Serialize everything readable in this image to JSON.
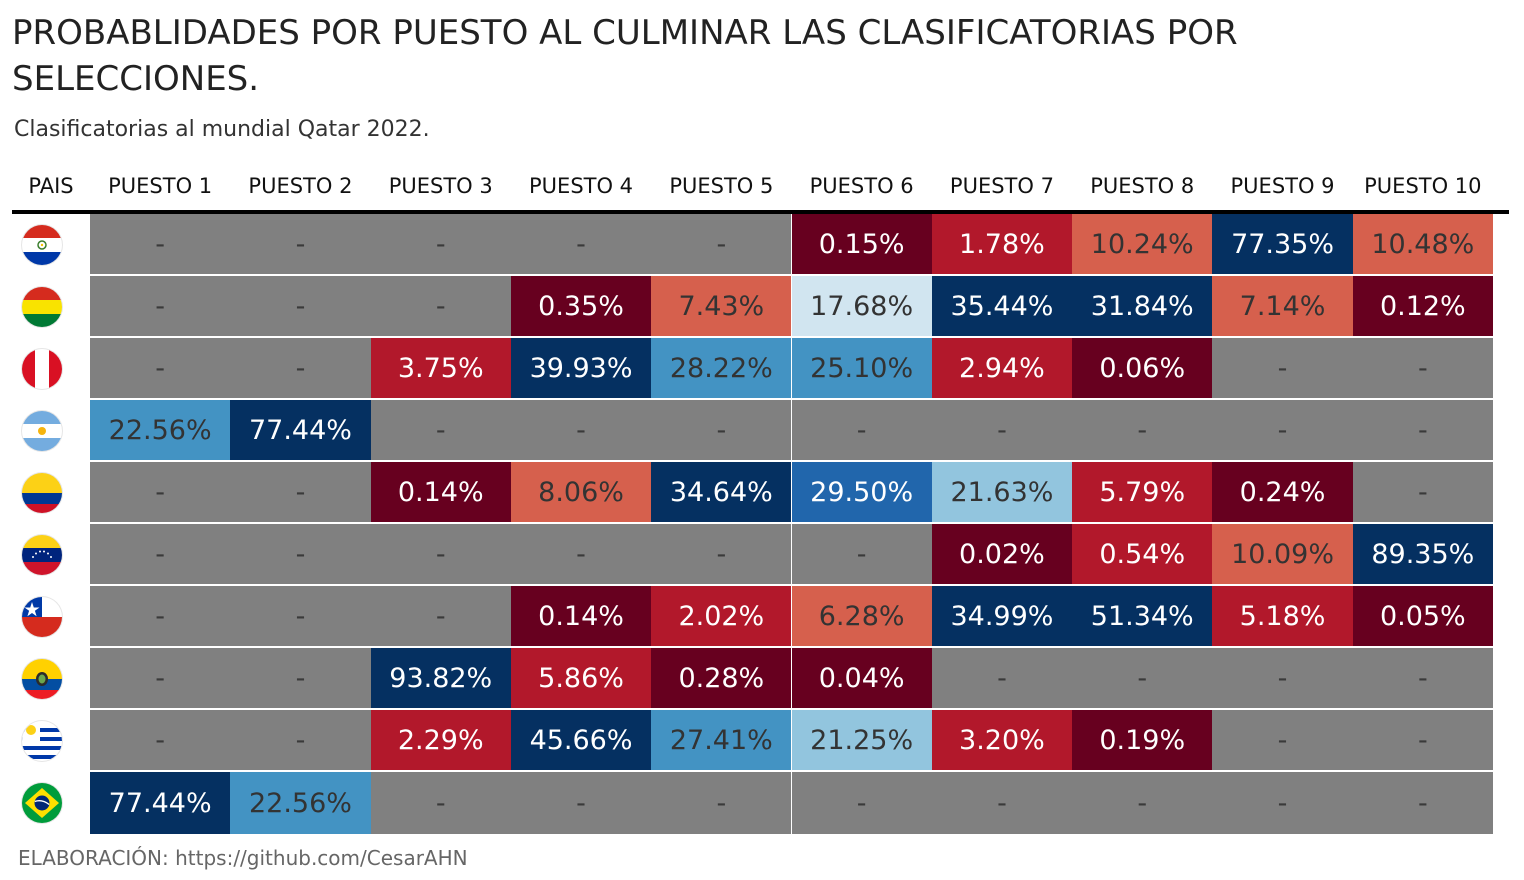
{
  "chart_data": {
    "type": "table",
    "title": "PROBABLIDADES POR PUESTO AL CULMINAR LAS CLASIFICATORIAS POR SELECCIONES.",
    "subtitle": "Clasificatorias al mundial Qatar 2022.",
    "caption": "ELABORACIÓN: https://github.com/CesarAHN",
    "columns": [
      "PAIS",
      "PUESTO 1",
      "PUESTO 2",
      "PUESTO 3",
      "PUESTO 4",
      "PUESTO 5",
      "PUESTO 6",
      "PUESTO 7",
      "PUESTO 8",
      "PUESTO 9",
      "PUESTO 10"
    ],
    "rows": [
      {
        "flag": "paraguay-flag-icon",
        "values": [
          "-",
          "-",
          "-",
          "-",
          "-",
          "0.15%",
          "1.78%",
          "10.24%",
          "77.35%",
          "10.48%"
        ]
      },
      {
        "flag": "bolivia-flag-icon",
        "values": [
          "-",
          "-",
          "-",
          "0.35%",
          "7.43%",
          "17.68%",
          "35.44%",
          "31.84%",
          "7.14%",
          "0.12%"
        ]
      },
      {
        "flag": "peru-flag-icon",
        "values": [
          "-",
          "-",
          "3.75%",
          "39.93%",
          "28.22%",
          "25.10%",
          "2.94%",
          "0.06%",
          "-",
          "-"
        ]
      },
      {
        "flag": "argentina-flag-icon",
        "values": [
          "22.56%",
          "77.44%",
          "-",
          "-",
          "-",
          "-",
          "-",
          "-",
          "-",
          "-"
        ]
      },
      {
        "flag": "colombia-flag-icon",
        "values": [
          "-",
          "-",
          "0.14%",
          "8.06%",
          "34.64%",
          "29.50%",
          "21.63%",
          "5.79%",
          "0.24%",
          "-"
        ]
      },
      {
        "flag": "venezuela-flag-icon",
        "values": [
          "-",
          "-",
          "-",
          "-",
          "-",
          "-",
          "0.02%",
          "0.54%",
          "10.09%",
          "89.35%"
        ]
      },
      {
        "flag": "chile-flag-icon",
        "values": [
          "-",
          "-",
          "-",
          "0.14%",
          "2.02%",
          "6.28%",
          "34.99%",
          "51.34%",
          "5.18%",
          "0.05%"
        ]
      },
      {
        "flag": "ecuador-flag-icon",
        "values": [
          "-",
          "-",
          "93.82%",
          "5.86%",
          "0.28%",
          "0.04%",
          "-",
          "-",
          "-",
          "-"
        ]
      },
      {
        "flag": "uruguay-flag-icon",
        "values": [
          "-",
          "-",
          "2.29%",
          "45.66%",
          "27.41%",
          "21.25%",
          "3.20%",
          "0.19%",
          "-",
          "-"
        ]
      },
      {
        "flag": "brazil-flag-icon",
        "values": [
          "77.44%",
          "22.56%",
          "-",
          "-",
          "-",
          "-",
          "-",
          "-",
          "-",
          "-"
        ]
      }
    ],
    "colors": {
      "empty": "#808080",
      "dark_red": "#67001f",
      "red": "#b2182b",
      "salmon": "#d6604d",
      "light_blue": "#d1e5f0",
      "mid_light_blue": "#92c5de",
      "blue": "#4393c3",
      "mid_blue": "#2166ac",
      "navy": "#053061",
      "separator": "#ffffff"
    },
    "color_scale": [
      {
        "max": 0.5,
        "color": "#67001f"
      },
      {
        "max": 3.5,
        "color": "#b2182b"
      },
      {
        "max": 6.0,
        "color": "#b2182b"
      },
      {
        "max": 11.0,
        "color": "#d6604d"
      },
      {
        "max": 20.0,
        "color": "#d1e5f0"
      },
      {
        "max": 22.0,
        "color": "#92c5de"
      },
      {
        "max": 26.0,
        "color": "#4393c3"
      },
      {
        "max": 29.0,
        "color": "#4393c3"
      },
      {
        "max": 30.0,
        "color": "#2166ac"
      },
      {
        "max": 101.0,
        "color": "#053061"
      }
    ]
  }
}
